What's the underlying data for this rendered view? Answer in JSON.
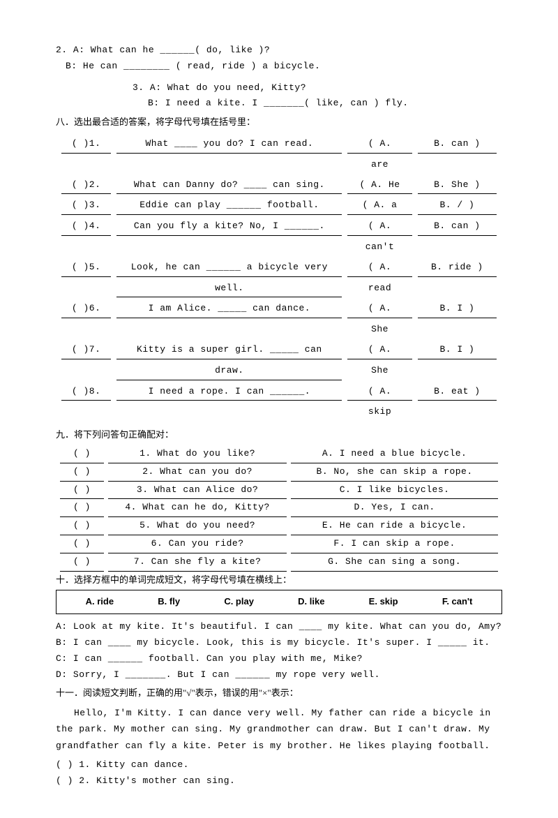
{
  "q2": {
    "lineA": "2. A: What can he ______( do,  like )?",
    "lineB": "B: He can ________ ( read,  ride ) a bicycle."
  },
  "q3": {
    "lineA": "3. A: What do you need, Kitty?",
    "lineB": "B: I need a kite. I _______( like,  can ) fly."
  },
  "section8_title": "八．选出最合适的答案，将字母代号填在括号里：",
  "t8": [
    {
      "num": "(    )1.",
      "q": [
        "What ____ you do? I can read."
      ],
      "a": [
        "( A.",
        "are"
      ],
      "b": "B. can )"
    },
    {
      "num": "(    )2.",
      "q": [
        "What can Danny do? ____ can sing."
      ],
      "a": [
        "( A. He"
      ],
      "b": "B. She )"
    },
    {
      "num": "(    )3.",
      "q": [
        "Eddie can play ______ football."
      ],
      "a": [
        "( A. a"
      ],
      "b": "B. / )"
    },
    {
      "num": "(    )4.",
      "q": [
        "Can you fly a kite? No, I ______."
      ],
      "a": [
        "( A.",
        "can't"
      ],
      "b": "B. can )"
    },
    {
      "num": "(    )5.",
      "q": [
        "Look, he can ______ a bicycle very",
        "well."
      ],
      "a": [
        "( A.",
        "read"
      ],
      "b": "B. ride )"
    },
    {
      "num": "(    )6.",
      "q": [
        "I am Alice. _____ can dance."
      ],
      "a": [
        "( A.",
        "She"
      ],
      "b": "B. I )"
    },
    {
      "num": "(    )7.",
      "q": [
        "Kitty is a super girl. _____ can",
        "draw."
      ],
      "a": [
        "( A.",
        "She"
      ],
      "b": "B. I )"
    },
    {
      "num": "(    )8.",
      "q": [
        "I need a rope. I can ______."
      ],
      "a": [
        "( A.",
        "skip"
      ],
      "b": "B. eat )"
    }
  ],
  "section9_title": "九．将下列问答句正确配对：",
  "t9": [
    {
      "p": "(    )",
      "q": "1. What do you like?",
      "a": "A. I need a blue bicycle."
    },
    {
      "p": "(    )",
      "q": "2. What can you do?",
      "a": "B. No, she can skip a rope."
    },
    {
      "p": "(    )",
      "q": "3. What can Alice do?",
      "a": "C. I like bicycles."
    },
    {
      "p": "(    )",
      "q": "4. What can he do, Kitty?",
      "a": "D. Yes, I can."
    },
    {
      "p": "(    )",
      "q": "5. What do you need?",
      "a": "E. He can ride a bicycle."
    },
    {
      "p": "(    )",
      "q": "6. Can you ride?",
      "a": "F. I can skip a rope."
    },
    {
      "p": "(    )",
      "q": "7. Can she fly a kite?",
      "a": "G. She can sing a song."
    }
  ],
  "section10_title": "十．选择方框中的单词完成短文，将字母代号填在横线上：",
  "wordbox": [
    "A. ride",
    "B. fly",
    "C. play",
    "D. like",
    "E. skip",
    "F. can't"
  ],
  "dialog10": {
    "A": "A: Look at my kite. It's beautiful. I can ____ my kite. What can you do, Amy?",
    "B": "B: I can ____ my bicycle. Look, this is my bicycle. It's super. I _____ it.",
    "C": "C: I can ______ football. Can you play with me, Mike?",
    "D": "D: Sorry, I _______. But I can ______ my rope very well."
  },
  "section11_title": "十一．阅读短文判断，正确的用\"√\"表示，错误的用\"×\"表示：",
  "passage11": "Hello, I'm Kitty. I can dance very well. My father can ride a bicycle in the park. My mother can sing. My grandmother can draw. But I can't draw. My grandfather can fly a kite. Peter is my brother. He likes playing football.",
  "judge11": [
    "(    ) 1. Kitty can dance.",
    "(    ) 2. Kitty's mother can sing."
  ]
}
